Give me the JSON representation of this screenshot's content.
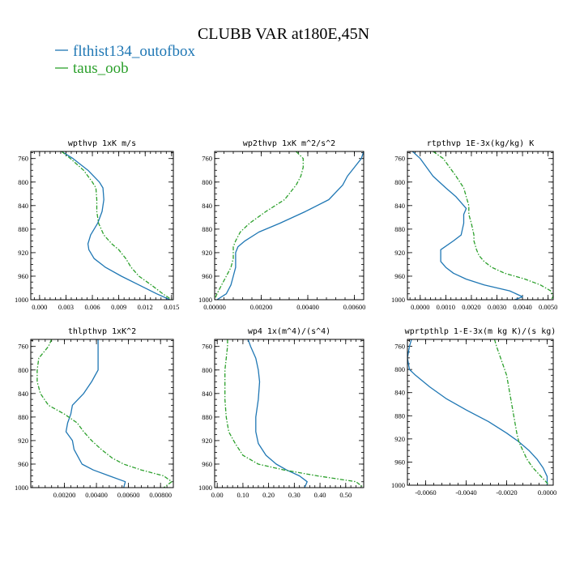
{
  "figure": {
    "title": "CLUBB VAR at180E,45N",
    "legend": [
      {
        "label": "flthist134_outofbox",
        "color": "#1f77b4",
        "dash": "solid"
      },
      {
        "label": "taus_oob",
        "color": "#2ca02c",
        "dash": "dashdot"
      }
    ]
  },
  "chart_data": [
    {
      "type": "line",
      "title": "wpthvp  1xK m/s",
      "xlim": [
        -0.001,
        0.0152
      ],
      "ylim": [
        1000,
        748
      ],
      "xticks": [
        0.0,
        0.003,
        0.006,
        0.009,
        0.012,
        0.015
      ],
      "xtick_labels": [
        "0.000",
        "0.003",
        "0.006",
        "0.009",
        "0.012",
        "0.015"
      ],
      "yticks": [
        760,
        800,
        840,
        880,
        920,
        960,
        1000
      ],
      "ytick_labels": [
        "760",
        "800",
        "840",
        "880",
        "920",
        "960",
        "1000"
      ],
      "y": [
        748,
        760,
        780,
        800,
        810,
        830,
        850,
        870,
        890,
        905,
        915,
        930,
        945,
        960,
        975,
        990,
        1000
      ],
      "series": [
        {
          "name": "flthist134_outofbox",
          "color": "#1f77b4",
          "dash": "solid",
          "values": [
            0.0025,
            0.0038,
            0.0055,
            0.0068,
            0.0072,
            0.0073,
            0.0071,
            0.0066,
            0.0058,
            0.0055,
            0.0056,
            0.0062,
            0.0075,
            0.0093,
            0.0113,
            0.0133,
            0.0148
          ]
        },
        {
          "name": "taus_oob",
          "color": "#2ca02c",
          "dash": "dashdot",
          "values": [
            0.0025,
            0.0035,
            0.005,
            0.006,
            0.0064,
            0.0065,
            0.0065,
            0.0067,
            0.0073,
            0.0082,
            0.009,
            0.0098,
            0.0104,
            0.0113,
            0.0127,
            0.014,
            0.015
          ]
        }
      ]
    },
    {
      "type": "line",
      "title": "wp2thvp  1xK m^2/s^2",
      "xlim": [
        0.0,
        0.0064
      ],
      "ylim": [
        1000,
        748
      ],
      "xticks": [
        0.0,
        0.002,
        0.004,
        0.006
      ],
      "xtick_labels": [
        "0.00000",
        "0.00200",
        "0.00400",
        "0.00600"
      ],
      "yticks": [
        760,
        800,
        840,
        880,
        920,
        960,
        1000
      ],
      "ytick_labels": [
        "760",
        "800",
        "840",
        "880",
        "920",
        "960",
        "1000"
      ],
      "y": [
        748,
        760,
        775,
        790,
        805,
        830,
        850,
        870,
        885,
        900,
        910,
        920,
        930,
        945,
        960,
        975,
        990,
        1000
      ],
      "series": [
        {
          "name": "flthist134_outofbox",
          "color": "#1f77b4",
          "dash": "solid",
          "values": [
            0.0064,
            0.0063,
            0.006,
            0.0057,
            0.0055,
            0.0049,
            0.0039,
            0.0028,
            0.0019,
            0.0013,
            0.001,
            0.0009,
            0.0009,
            0.0009,
            0.0008,
            0.0007,
            0.0005,
            0.0001
          ]
        },
        {
          "name": "taus_oob",
          "color": "#2ca02c",
          "dash": "dashdot",
          "values": [
            0.0035,
            0.0038,
            0.0038,
            0.0037,
            0.0035,
            0.003,
            0.0022,
            0.0015,
            0.0011,
            0.0009,
            0.0008,
            0.0008,
            0.0008,
            0.0007,
            0.0005,
            0.0003,
            0.0001,
            0.0
          ]
        }
      ]
    },
    {
      "type": "line",
      "title": "rtpthvp  1E-3x(kg/kg) K",
      "xlim": [
        -0.0005,
        0.0052
      ],
      "ylim": [
        1000,
        748
      ],
      "xticks": [
        0.0,
        0.001,
        0.002,
        0.003,
        0.004,
        0.005
      ],
      "xtick_labels": [
        "0.0000",
        "0.0010",
        "0.0020",
        "0.0030",
        "0.0040",
        "0.0050"
      ],
      "yticks": [
        760,
        800,
        840,
        880,
        920,
        960,
        1000
      ],
      "ytick_labels": [
        "760",
        "800",
        "840",
        "880",
        "920",
        "960",
        "1000"
      ],
      "y": [
        748,
        760,
        790,
        810,
        825,
        840,
        845,
        855,
        870,
        890,
        900,
        915,
        925,
        935,
        945,
        955,
        965,
        975,
        985,
        995,
        1000
      ],
      "series": [
        {
          "name": "flthist134_outofbox",
          "color": "#1f77b4",
          "dash": "solid",
          "values": [
            -0.0003,
            0.0,
            0.0005,
            0.001,
            0.0014,
            0.0017,
            0.0018,
            0.0017,
            0.0017,
            0.0016,
            0.0013,
            0.0008,
            0.0008,
            0.0008,
            0.001,
            0.0013,
            0.0018,
            0.0025,
            0.0035,
            0.004,
            0.0037
          ]
        },
        {
          "name": "taus_oob",
          "color": "#2ca02c",
          "dash": "dashdot",
          "values": [
            0.0005,
            0.0009,
            0.0014,
            0.0017,
            0.0018,
            0.0019,
            0.0019,
            0.0019,
            0.002,
            0.0021,
            0.0021,
            0.0022,
            0.0023,
            0.0025,
            0.0028,
            0.0033,
            0.0041,
            0.0047,
            0.0051,
            0.0052,
            0.0051
          ]
        }
      ]
    },
    {
      "type": "line",
      "title": "thlpthvp  1xK^2",
      "xlim": [
        -0.0001,
        0.0088
      ],
      "ylim": [
        1000,
        748
      ],
      "xticks": [
        0.002,
        0.004,
        0.006,
        0.008
      ],
      "xtick_labels": [
        "0.00200",
        "0.00400",
        "0.00600",
        "0.00800"
      ],
      "yticks": [
        760,
        800,
        840,
        880,
        920,
        960,
        1000
      ],
      "ytick_labels": [
        "760",
        "800",
        "840",
        "880",
        "920",
        "960",
        "1000"
      ],
      "y": [
        748,
        760,
        780,
        800,
        810,
        820,
        840,
        860,
        875,
        890,
        905,
        920,
        935,
        950,
        960,
        970,
        980,
        990,
        1000
      ],
      "series": [
        {
          "name": "flthist134_outofbox",
          "color": "#1f77b4",
          "dash": "solid",
          "values": [
            0.0041,
            0.0041,
            0.0041,
            0.0041,
            0.0039,
            0.0037,
            0.0032,
            0.0025,
            0.0024,
            0.0022,
            0.0021,
            0.0025,
            0.0026,
            0.0029,
            0.0031,
            0.0038,
            0.0048,
            0.0058,
            0.0057
          ]
        },
        {
          "name": "taus_oob",
          "color": "#2ca02c",
          "dash": "dashdot",
          "values": [
            0.0012,
            0.001,
            0.0004,
            0.0003,
            0.0003,
            0.0003,
            0.0005,
            0.001,
            0.002,
            0.0028,
            0.0032,
            0.0037,
            0.0043,
            0.005,
            0.0057,
            0.0068,
            0.0082,
            0.0087,
            0.0082
          ]
        }
      ]
    },
    {
      "type": "line",
      "title": "wp4  1x(m^4)/(s^4)",
      "xlim": [
        -0.01,
        0.57
      ],
      "ylim": [
        1000,
        748
      ],
      "xticks": [
        0.0,
        0.1,
        0.2,
        0.3,
        0.4,
        0.5
      ],
      "xtick_labels": [
        "0.00",
        "0.10",
        "0.20",
        "0.30",
        "0.40",
        "0.50"
      ],
      "yticks": [
        760,
        800,
        840,
        880,
        920,
        960,
        1000
      ],
      "ytick_labels": [
        "760",
        "800",
        "840",
        "880",
        "920",
        "960",
        "1000"
      ],
      "y": [
        748,
        760,
        780,
        800,
        820,
        850,
        880,
        905,
        925,
        945,
        960,
        970,
        980,
        990,
        1000
      ],
      "series": [
        {
          "name": "flthist134_outofbox",
          "color": "#1f77b4",
          "dash": "solid",
          "values": [
            0.12,
            0.13,
            0.15,
            0.16,
            0.165,
            0.16,
            0.15,
            0.15,
            0.16,
            0.19,
            0.23,
            0.27,
            0.32,
            0.35,
            0.34
          ]
        },
        {
          "name": "taus_oob",
          "color": "#2ca02c",
          "dash": "dashdot",
          "values": [
            0.04,
            0.04,
            0.035,
            0.03,
            0.03,
            0.03,
            0.035,
            0.045,
            0.07,
            0.1,
            0.16,
            0.26,
            0.39,
            0.54,
            0.57
          ]
        }
      ]
    },
    {
      "type": "line",
      "title": "wprtpthlp  1-E-3x(m kg K)/(s kg)",
      "xlim": [
        -0.0069,
        0.0003
      ],
      "ylim": [
        1000,
        748
      ],
      "xticks": [
        -0.006,
        -0.004,
        -0.002,
        0.0
      ],
      "xtick_labels": [
        "-0.0060",
        "-0.0040",
        "-0.0020",
        "0.0000"
      ],
      "yticks": [
        760,
        800,
        840,
        880,
        920,
        960,
        1000
      ],
      "ytick_labels": [
        "760",
        "800",
        "840",
        "880",
        "920",
        "960",
        "1000"
      ],
      "y": [
        748,
        760,
        780,
        800,
        810,
        830,
        850,
        870,
        890,
        910,
        925,
        940,
        955,
        970,
        985,
        1000
      ],
      "series": [
        {
          "name": "flthist134_outofbox",
          "color": "#1f77b4",
          "dash": "solid",
          "values": [
            -0.0067,
            -0.0068,
            -0.0069,
            -0.0068,
            -0.0065,
            -0.0058,
            -0.005,
            -0.004,
            -0.0029,
            -0.002,
            -0.0014,
            -0.0009,
            -0.0005,
            -0.0002,
            0.0,
            0.0
          ]
        },
        {
          "name": "taus_oob",
          "color": "#2ca02c",
          "dash": "dashdot",
          "values": [
            -0.0026,
            -0.0025,
            -0.0023,
            -0.0021,
            -0.002,
            -0.0019,
            -0.0018,
            -0.0017,
            -0.0016,
            -0.0015,
            -0.0014,
            -0.0012,
            -0.001,
            -0.0007,
            -0.0003,
            0.0001
          ]
        }
      ]
    }
  ]
}
